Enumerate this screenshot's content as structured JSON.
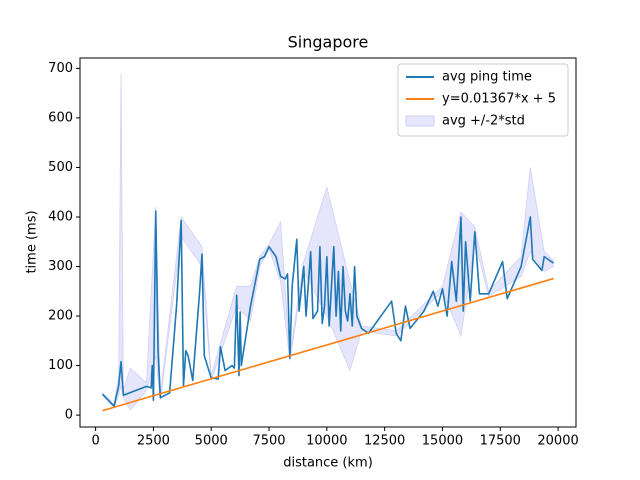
{
  "chart_data": {
    "type": "line",
    "title": "Singapore",
    "xlabel": "distance (km)",
    "ylabel": "time (ms)",
    "xlim": [
      -675,
      20775
    ],
    "ylim": [
      -24,
      721
    ],
    "xticks": [
      0,
      2500,
      5000,
      7500,
      10000,
      12500,
      15000,
      17500,
      20000
    ],
    "yticks": [
      0,
      100,
      200,
      300,
      400,
      500,
      600,
      700
    ],
    "legend": "upper right",
    "series": [
      {
        "name": "avg ping time",
        "color": "#1f77b4",
        "x": [
          300,
          800,
          1000,
          1100,
          1200,
          2200,
          2400,
          2450,
          2500,
          2600,
          2700,
          2800,
          3200,
          3500,
          3700,
          3800,
          3900,
          4000,
          4200,
          4500,
          4600,
          4700,
          5000,
          5300,
          5400,
          5600,
          5900,
          6000,
          6100,
          6200,
          6250,
          6300,
          6700,
          7100,
          7300,
          7500,
          7800,
          8000,
          8200,
          8300,
          8400,
          8500,
          8700,
          8800,
          9000,
          9100,
          9300,
          9400,
          9600,
          9700,
          9800,
          9900,
          10000,
          10100,
          10200,
          10300,
          10400,
          10500,
          10600,
          10700,
          10800,
          10900,
          11000,
          11100,
          11200,
          11300,
          11500,
          11800,
          12800,
          13000,
          13200,
          13400,
          13600,
          14200,
          14600,
          14800,
          15000,
          15200,
          15400,
          15600,
          15800,
          15900,
          16000,
          16200,
          16400,
          16600,
          17000,
          17600,
          17800,
          18400,
          18800,
          18900,
          19300,
          19400,
          19800
        ],
        "values": [
          42,
          18,
          60,
          108,
          40,
          58,
          55,
          100,
          30,
          412,
          130,
          35,
          45,
          220,
          393,
          60,
          130,
          120,
          70,
          250,
          325,
          120,
          75,
          73,
          138,
          90,
          100,
          95,
          242,
          80,
          208,
          100,
          220,
          315,
          320,
          340,
          320,
          280,
          275,
          285,
          115,
          260,
          355,
          210,
          300,
          200,
          330,
          195,
          210,
          340,
          185,
          220,
          320,
          180,
          260,
          340,
          200,
          290,
          170,
          300,
          210,
          190,
          245,
          180,
          300,
          200,
          175,
          165,
          230,
          165,
          150,
          220,
          175,
          210,
          250,
          220,
          255,
          200,
          310,
          230,
          400,
          210,
          350,
          230,
          370,
          245,
          245,
          310,
          235,
          300,
          400,
          315,
          292,
          320,
          307
        ]
      },
      {
        "name": "y=0.01367*x + 5",
        "color": "#ff7f0e",
        "x": [
          300,
          19800
        ],
        "values": [
          9.101,
          275.666
        ]
      },
      {
        "name": "avg +/-2*std",
        "color": "#e5e5fc",
        "x": [
          300,
          800,
          1000,
          1100,
          1200,
          1500,
          2200,
          2600,
          2800,
          3700,
          4600,
          5000,
          6100,
          6700,
          7100,
          7500,
          8000,
          8400,
          9000,
          10000,
          11000,
          11500,
          13000,
          15000,
          15800,
          16400,
          17000,
          18400,
          18800,
          19400,
          19800
        ],
        "lower": [
          40,
          15,
          40,
          60,
          35,
          10,
          50,
          120,
          30,
          360,
          300,
          70,
          220,
          190,
          300,
          335,
          270,
          110,
          290,
          200,
          90,
          170,
          160,
          250,
          160,
          350,
          240,
          280,
          330,
          290,
          300
        ],
        "upper": [
          45,
          22,
          80,
          690,
          50,
          95,
          65,
          420,
          40,
          400,
          340,
          80,
          260,
          260,
          320,
          345,
          390,
          120,
          310,
          460,
          270,
          180,
          170,
          260,
          410,
          380,
          250,
          320,
          500,
          330,
          312
        ]
      }
    ]
  }
}
